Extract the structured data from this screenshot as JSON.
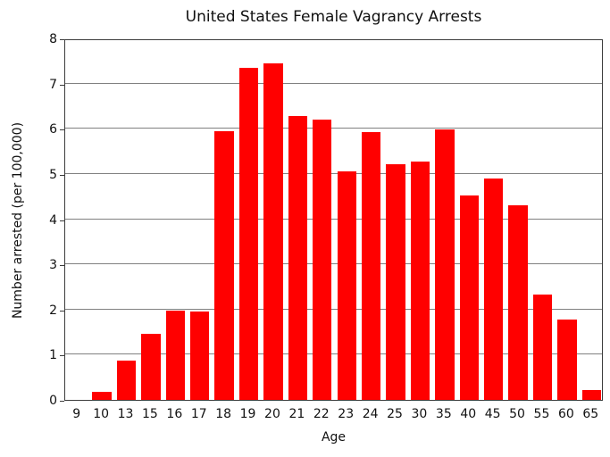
{
  "chart_data": {
    "type": "bar",
    "title": "United States Female Vagrancy Arrests",
    "xlabel": "Age",
    "ylabel": "Number arrested (per 100,000)",
    "categories": [
      "9",
      "10",
      "13",
      "15",
      "16",
      "17",
      "18",
      "19",
      "20",
      "21",
      "22",
      "23",
      "24",
      "25",
      "30",
      "35",
      "40",
      "45",
      "50",
      "55",
      "60",
      "65"
    ],
    "values": [
      0,
      0.17,
      0.87,
      1.47,
      1.98,
      1.96,
      5.94,
      7.35,
      7.44,
      6.28,
      6.2,
      5.05,
      5.92,
      5.21,
      5.28,
      5.99,
      4.53,
      4.9,
      4.31,
      2.34,
      1.77,
      0.22
    ],
    "ylim": [
      0,
      8
    ],
    "yticks": [
      0,
      1,
      2,
      3,
      4,
      5,
      6,
      7,
      8
    ],
    "grid": "horizontal",
    "legend_position": "none",
    "bar_color": "#ff0000",
    "grid_color": "#808080",
    "axis_color": "#3c3c3c",
    "background_color": "#ffffff"
  }
}
